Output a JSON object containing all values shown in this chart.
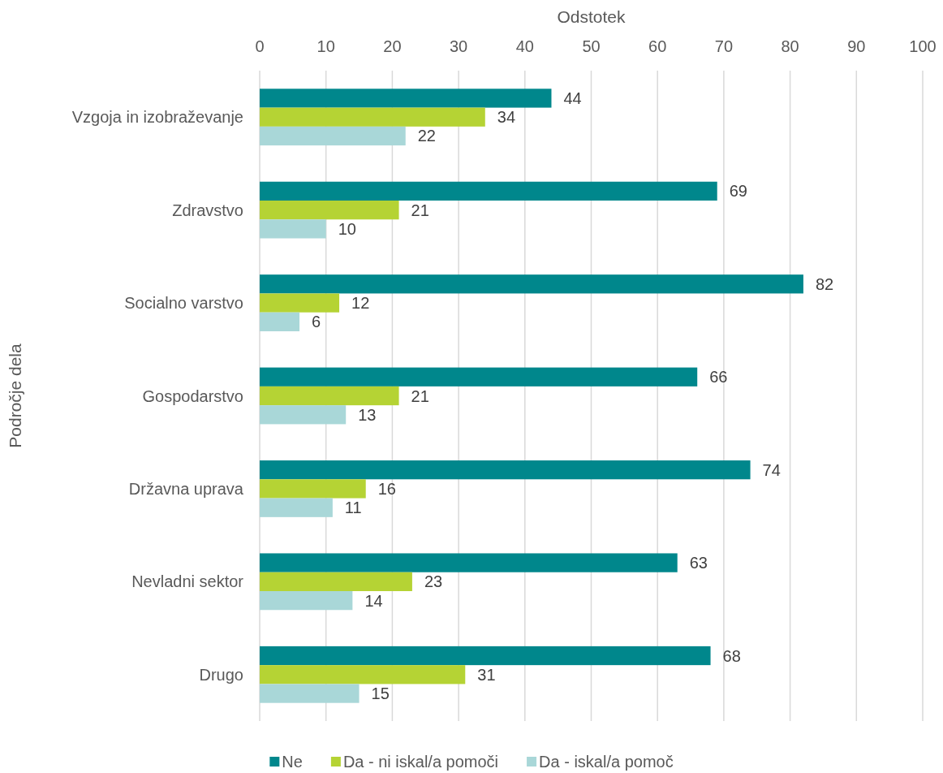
{
  "chart_data": {
    "type": "bar",
    "orientation": "horizontal",
    "xlabel": "Odstotek",
    "ylabel": "Področje dela",
    "categories": [
      "Vzgoja in izobraževanje",
      "Zdravstvo",
      "Socialno varstvo",
      "Gospodarstvo",
      "Državna uprava",
      "Nevladni sektor",
      "Drugo"
    ],
    "series": [
      {
        "name": "Ne",
        "color": "#00878c",
        "values": [
          44,
          69,
          82,
          66,
          74,
          63,
          68
        ]
      },
      {
        "name": "Da - ni iskal/a pomoči",
        "color": "#b5d334",
        "values": [
          34,
          21,
          12,
          21,
          16,
          23,
          31
        ]
      },
      {
        "name": "Da - iskal/a pomoč",
        "color": "#a9d7d8",
        "values": [
          22,
          10,
          6,
          13,
          11,
          14,
          15
        ]
      }
    ],
    "xlim": [
      0,
      100
    ],
    "xticks": [
      0,
      10,
      20,
      30,
      40,
      50,
      60,
      70,
      80,
      90,
      100
    ],
    "grid": "x",
    "legend": "bottom",
    "data_labels": true
  }
}
